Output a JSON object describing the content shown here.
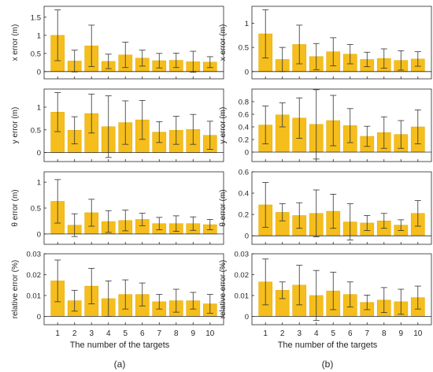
{
  "figure": {
    "panel_labels": [
      "(a)",
      "(b)"
    ],
    "xlabel": "The number of the targets",
    "bar_color": "#f5be1c",
    "bar_edge_color": "#e0a800",
    "axis_color": "#262626"
  },
  "chart_data": [
    {
      "type": "bar",
      "panel": "(a)",
      "row": 0,
      "categories": [
        "1",
        "2",
        "3",
        "4",
        "5",
        "6",
        "7",
        "8",
        "9",
        "10"
      ],
      "values": [
        1.0,
        0.29,
        0.71,
        0.28,
        0.46,
        0.37,
        0.3,
        0.31,
        0.27,
        0.26
      ],
      "error": [
        0.7,
        0.3,
        0.57,
        0.2,
        0.35,
        0.22,
        0.2,
        0.2,
        0.29,
        0.15
      ],
      "xlabel": "",
      "ylabel": "x error (m)",
      "ylim": [
        -0.2,
        1.8
      ],
      "yticks": [
        0,
        0.5,
        1,
        1.5
      ],
      "ytick_labels": [
        "0",
        "0.5",
        "1",
        "1.5"
      ]
    },
    {
      "type": "bar",
      "panel": "(a)",
      "row": 1,
      "categories": [
        "1",
        "2",
        "3",
        "4",
        "5",
        "6",
        "7",
        "8",
        "9",
        "10"
      ],
      "values": [
        0.89,
        0.49,
        0.86,
        0.57,
        0.66,
        0.72,
        0.45,
        0.49,
        0.51,
        0.38
      ],
      "error": [
        0.43,
        0.3,
        0.43,
        0.68,
        0.48,
        0.43,
        0.23,
        0.31,
        0.33,
        0.31
      ],
      "xlabel": "",
      "ylabel": "y error (m)",
      "ylim": [
        -0.2,
        1.4
      ],
      "yticks": [
        0,
        0.5,
        1
      ],
      "ytick_labels": [
        "0",
        "0.5",
        "1"
      ]
    },
    {
      "type": "bar",
      "panel": "(a)",
      "row": 2,
      "categories": [
        "1",
        "2",
        "3",
        "4",
        "5",
        "6",
        "7",
        "8",
        "9",
        "10"
      ],
      "values": [
        0.63,
        0.17,
        0.41,
        0.24,
        0.26,
        0.28,
        0.2,
        0.2,
        0.2,
        0.18
      ],
      "error": [
        0.42,
        0.22,
        0.26,
        0.21,
        0.2,
        0.12,
        0.12,
        0.15,
        0.13,
        0.1
      ],
      "xlabel": "",
      "ylabel": "θ error (m)",
      "ylim": [
        -0.2,
        1.2
      ],
      "yticks": [
        0,
        0.5,
        1
      ],
      "ytick_labels": [
        "0",
        "0.5",
        "1"
      ]
    },
    {
      "type": "bar",
      "panel": "(a)",
      "row": 3,
      "categories": [
        "1",
        "2",
        "3",
        "4",
        "5",
        "6",
        "7",
        "8",
        "9",
        "10"
      ],
      "values": [
        0.017,
        0.0075,
        0.0145,
        0.0085,
        0.0105,
        0.0105,
        0.007,
        0.0075,
        0.0075,
        0.006
      ],
      "error": [
        0.01,
        0.005,
        0.0085,
        0.0085,
        0.007,
        0.0055,
        0.0035,
        0.0055,
        0.004,
        0.0045
      ],
      "xlabel": "The number of the targets",
      "ylabel": "relative error (%)",
      "ylim": [
        -0.004,
        0.03
      ],
      "yticks": [
        0,
        0.01,
        0.02,
        0.03
      ],
      "ytick_labels": [
        "0",
        "0.01",
        "0.02",
        "0.03"
      ]
    },
    {
      "type": "bar",
      "panel": "(b)",
      "row": 0,
      "categories": [
        "1",
        "2",
        "3",
        "4",
        "5",
        "6",
        "7",
        "8",
        "9",
        "10"
      ],
      "values": [
        0.78,
        0.25,
        0.56,
        0.31,
        0.41,
        0.36,
        0.25,
        0.27,
        0.23,
        0.26
      ],
      "error": [
        0.5,
        0.25,
        0.4,
        0.27,
        0.29,
        0.2,
        0.15,
        0.2,
        0.2,
        0.15
      ],
      "xlabel": "",
      "ylabel": "x error (m)",
      "ylim": [
        -0.15,
        1.35
      ],
      "yticks": [
        0,
        0.5,
        1
      ],
      "ytick_labels": [
        "0",
        "0.5",
        "1"
      ]
    },
    {
      "type": "bar",
      "panel": "(b)",
      "row": 1,
      "categories": [
        "1",
        "2",
        "3",
        "4",
        "5",
        "6",
        "7",
        "8",
        "9",
        "10"
      ],
      "values": [
        0.43,
        0.59,
        0.54,
        0.44,
        0.5,
        0.42,
        0.25,
        0.31,
        0.28,
        0.4
      ],
      "error": [
        0.3,
        0.19,
        0.32,
        0.55,
        0.4,
        0.27,
        0.16,
        0.25,
        0.22,
        0.27
      ],
      "xlabel": "",
      "ylabel": "y error (m)",
      "ylim": [
        -0.15,
        1.0
      ],
      "yticks": [
        0,
        0.2,
        0.4,
        0.6,
        0.8
      ],
      "ytick_labels": [
        "0",
        "0.2",
        "0.4",
        "0.6",
        "0.8"
      ]
    },
    {
      "type": "bar",
      "panel": "(b)",
      "row": 2,
      "categories": [
        "1",
        "2",
        "3",
        "4",
        "5",
        "6",
        "7",
        "8",
        "9",
        "10"
      ],
      "values": [
        0.29,
        0.22,
        0.19,
        0.21,
        0.23,
        0.13,
        0.12,
        0.14,
        0.1,
        0.21
      ],
      "error": [
        0.21,
        0.08,
        0.12,
        0.22,
        0.16,
        0.17,
        0.07,
        0.07,
        0.05,
        0.12
      ],
      "xlabel": "",
      "ylabel": "θ error (m)",
      "ylim": [
        -0.08,
        0.6
      ],
      "yticks": [
        0,
        0.2,
        0.4,
        0.6
      ],
      "ytick_labels": [
        "0",
        "0.2",
        "0.4",
        "0.6"
      ]
    },
    {
      "type": "bar",
      "panel": "(b)",
      "row": 3,
      "categories": [
        "1",
        "2",
        "3",
        "4",
        "5",
        "6",
        "7",
        "8",
        "9",
        "10"
      ],
      "values": [
        0.0165,
        0.0125,
        0.015,
        0.01,
        0.0122,
        0.0105,
        0.0067,
        0.0078,
        0.007,
        0.009
      ],
      "error": [
        0.011,
        0.004,
        0.0095,
        0.012,
        0.009,
        0.006,
        0.0035,
        0.006,
        0.006,
        0.0055
      ],
      "xlabel": "The number of the targets",
      "ylabel": "relative error (%)",
      "ylim": [
        -0.004,
        0.03
      ],
      "yticks": [
        0,
        0.01,
        0.02,
        0.03
      ],
      "ytick_labels": [
        "0",
        "0.01",
        "0.02",
        "0.03"
      ]
    }
  ]
}
